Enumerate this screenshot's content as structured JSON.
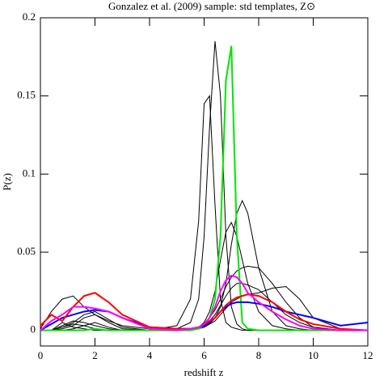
{
  "chart_data": {
    "type": "line",
    "title": "Gonzalez et al. (2009) sample: std templates, Z⊙",
    "x_label": "redshift z",
    "y_label": "P(z)",
    "xlim": [
      0,
      12
    ],
    "xticks": [
      0,
      2,
      4,
      6,
      8,
      10,
      12
    ],
    "ylim": [
      -0.01,
      0.2
    ],
    "yticks": [
      0,
      0.05,
      0.1,
      0.15,
      0.2
    ],
    "x": [
      0,
      0.4,
      0.8,
      1.2,
      1.6,
      2,
      2.5,
      3,
      4,
      5,
      5.5,
      5.8,
      6,
      6.2,
      6.4,
      6.6,
      6.8,
      7,
      7.2,
      7.4,
      7.6,
      8,
      8.5,
      9,
      9.5,
      10,
      11,
      12
    ],
    "series": [
      {
        "color": "#000000",
        "values": [
          0,
          0,
          0.005,
          0.002,
          0.001,
          0,
          0,
          0,
          0,
          0.003,
          0.02,
          0.07,
          0.145,
          0.15,
          0.08,
          0.02,
          0.005,
          0.002,
          0.001,
          0,
          0,
          0,
          0,
          0,
          0,
          0,
          0,
          0
        ]
      },
      {
        "color": "#000000",
        "values": [
          0,
          0,
          0,
          0.001,
          0.003,
          0.005,
          0.002,
          0,
          0,
          0.001,
          0.005,
          0.02,
          0.06,
          0.13,
          0.185,
          0.15,
          0.06,
          0.015,
          0.004,
          0.001,
          0,
          0,
          0,
          0,
          0,
          0,
          0,
          0
        ]
      },
      {
        "color": "#000000",
        "values": [
          0,
          0,
          0.002,
          0.004,
          0.003,
          0.001,
          0,
          0,
          0,
          0,
          0,
          0.001,
          0.002,
          0.004,
          0.008,
          0.015,
          0.03,
          0.055,
          0.075,
          0.083,
          0.075,
          0.04,
          0.012,
          0.003,
          0.001,
          0,
          0,
          0
        ]
      },
      {
        "color": "#000000",
        "values": [
          0,
          0,
          0.003,
          0.006,
          0.005,
          0.003,
          0.001,
          0,
          0,
          0,
          0.001,
          0.002,
          0.005,
          0.012,
          0.025,
          0.045,
          0.063,
          0.069,
          0.06,
          0.045,
          0.03,
          0.012,
          0.003,
          0.001,
          0,
          0,
          0,
          0
        ]
      },
      {
        "color": "#000000",
        "values": [
          0,
          0,
          0.001,
          0.003,
          0.008,
          0.01,
          0.005,
          0.001,
          0,
          0,
          0.001,
          0.002,
          0.004,
          0.008,
          0.013,
          0.02,
          0.028,
          0.034,
          0.038,
          0.04,
          0.041,
          0.04,
          0.03,
          0.018,
          0.008,
          0.002,
          0,
          0
        ]
      },
      {
        "color": "#000000",
        "values": [
          0,
          0,
          0.002,
          0.005,
          0.01,
          0.012,
          0.007,
          0.002,
          0,
          0,
          0,
          0.001,
          0.002,
          0.004,
          0.006,
          0.01,
          0.014,
          0.018,
          0.02,
          0.022,
          0.023,
          0.024,
          0.027,
          0.028,
          0.02,
          0.008,
          0.001,
          0
        ]
      },
      {
        "color": "#000000",
        "values": [
          0.001,
          0.012,
          0.02,
          0.022,
          0.015,
          0.01,
          0.006,
          0.003,
          0.001,
          0.001,
          0.001,
          0.002,
          0.004,
          0.006,
          0.01,
          0.016,
          0.022,
          0.027,
          0.03,
          0.03,
          0.029,
          0.026,
          0.018,
          0.01,
          0.005,
          0.002,
          0,
          0
        ]
      },
      {
        "color": "#00e600",
        "values": [
          0,
          0,
          0,
          0,
          0,
          0.001,
          0,
          0,
          0,
          0,
          0,
          0.001,
          0.003,
          0.008,
          0.02,
          0.06,
          0.16,
          0.182,
          0.06,
          0.005,
          0.001,
          0,
          0,
          0,
          0,
          0,
          0,
          0
        ]
      },
      {
        "color": "#0000ff",
        "values": [
          0,
          0.004,
          0.008,
          0.01,
          0.012,
          0.013,
          0.012,
          0.008,
          0.002,
          0.001,
          0.001,
          0.002,
          0.003,
          0.005,
          0.008,
          0.012,
          0.015,
          0.017,
          0.018,
          0.018,
          0.018,
          0.017,
          0.015,
          0.012,
          0.01,
          0.008,
          0.003,
          0.005
        ]
      },
      {
        "color": "#ff0000",
        "values": [
          0.003,
          0.01,
          0.006,
          0.015,
          0.022,
          0.024,
          0.018,
          0.01,
          0.002,
          0.001,
          0.001,
          0.002,
          0.004,
          0.006,
          0.008,
          0.012,
          0.016,
          0.019,
          0.021,
          0.022,
          0.023,
          0.022,
          0.018,
          0.012,
          0.007,
          0.004,
          0.001,
          0
        ]
      },
      {
        "color": "#ff00ff",
        "values": [
          0,
          0.006,
          0.01,
          0.015,
          0.015,
          0.014,
          0.012,
          0.008,
          0.001,
          0,
          0.001,
          0.002,
          0.004,
          0.008,
          0.015,
          0.025,
          0.032,
          0.035,
          0.034,
          0.03,
          0.024,
          0.018,
          0.012,
          0.007,
          0.003,
          0.001,
          0,
          0
        ]
      }
    ]
  }
}
